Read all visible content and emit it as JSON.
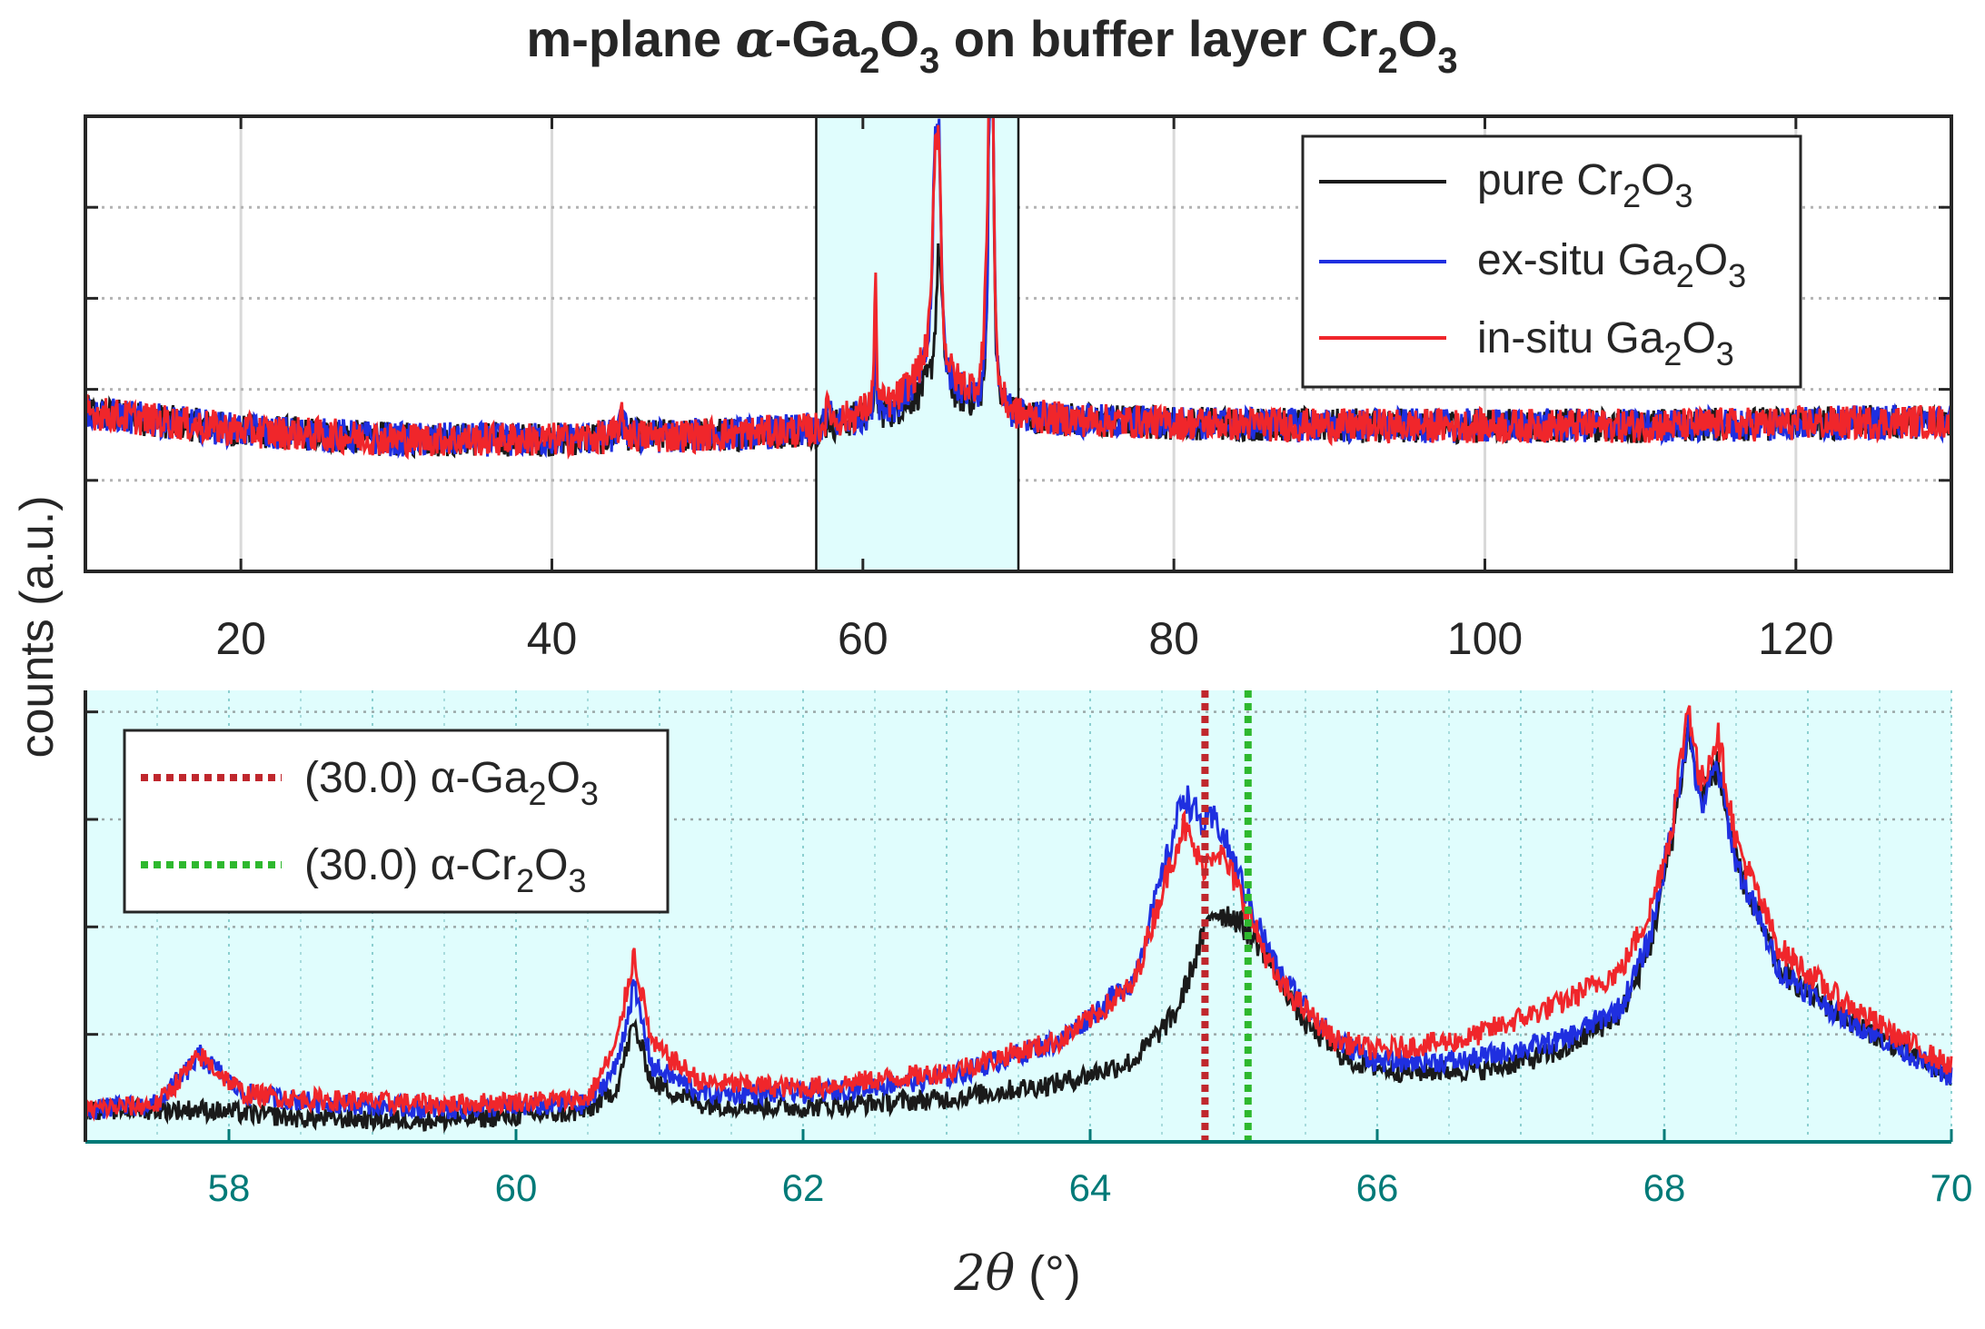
{
  "figure": {
    "title_prefix": "m-plane ",
    "title_greek": "α",
    "title_ga": "-Ga",
    "title_sub1": "2",
    "title_o": "O",
    "title_sub2": "3",
    "title_mid": " on buffer layer Cr",
    "title_sub3": "2",
    "title_o2": "O",
    "title_sub4": "3",
    "ylabel": "counts (a.u.)",
    "xlabel_theta": "2θ",
    "xlabel_unit": " (°)"
  },
  "chart_data": [
    {
      "type": "line",
      "panel": "overview",
      "xlim": [
        10,
        130
      ],
      "ylim": [
        0,
        5
      ],
      "xticks": [
        20,
        40,
        60,
        80,
        100,
        120
      ],
      "yticks": [
        1,
        2,
        3,
        4
      ],
      "grid": true,
      "legend_position": "top-right",
      "highlight_range": [
        57,
        70
      ],
      "legend": [
        {
          "label": "pure Cr",
          "sub1": "2",
          "mid": "O",
          "sub2": "3"
        },
        {
          "label": "ex-situ Ga",
          "sub1": "2",
          "mid": "O",
          "sub2": "3"
        },
        {
          "label": "in-situ Ga",
          "sub1": "2",
          "mid": "O",
          "sub2": "3"
        }
      ],
      "series": [
        {
          "name": "pure Cr2O3",
          "color": "#1a1a1a",
          "baseline": [
            [
              10,
              1.75
            ],
            [
              20,
              1.55
            ],
            [
              30,
              1.45
            ],
            [
              40,
              1.45
            ],
            [
              50,
              1.5
            ],
            [
              57,
              1.55
            ],
            [
              60,
              1.7
            ],
            [
              62,
              1.75
            ],
            [
              64,
              1.95
            ],
            [
              70,
              1.7
            ],
            [
              75,
              1.65
            ],
            [
              90,
              1.6
            ],
            [
              110,
              1.6
            ],
            [
              130,
              1.65
            ]
          ],
          "peaks": [
            [
              44.5,
              0.15,
              0.25
            ],
            [
              57.8,
              0.1,
              0.15
            ],
            [
              60.8,
              0.75,
              0.08
            ],
            [
              64.9,
              1.6,
              0.25
            ],
            [
              68.15,
              3.6,
              0.1
            ],
            [
              68.35,
              3.3,
              0.1
            ]
          ]
        },
        {
          "name": "ex-situ Ga2O3",
          "color": "#1f2fe0",
          "baseline": [
            [
              10,
              1.75
            ],
            [
              20,
              1.55
            ],
            [
              30,
              1.45
            ],
            [
              40,
              1.45
            ],
            [
              50,
              1.5
            ],
            [
              57,
              1.55
            ],
            [
              60,
              1.7
            ],
            [
              62,
              1.8
            ],
            [
              64,
              2.1
            ],
            [
              70,
              1.7
            ],
            [
              75,
              1.65
            ],
            [
              90,
              1.6
            ],
            [
              110,
              1.6
            ],
            [
              130,
              1.65
            ]
          ],
          "peaks": [
            [
              44.5,
              0.15,
              0.25
            ],
            [
              57.8,
              0.2,
              0.15
            ],
            [
              60.8,
              1.0,
              0.08
            ],
            [
              64.65,
              2.2,
              0.2
            ],
            [
              64.9,
              2.0,
              0.15
            ],
            [
              68.15,
              3.6,
              0.1
            ],
            [
              68.35,
              3.2,
              0.1
            ]
          ]
        },
        {
          "name": "in-situ Ga2O3",
          "color": "#f0262b",
          "baseline": [
            [
              10,
              1.75
            ],
            [
              20,
              1.55
            ],
            [
              30,
              1.45
            ],
            [
              40,
              1.45
            ],
            [
              50,
              1.5
            ],
            [
              57,
              1.55
            ],
            [
              60,
              1.75
            ],
            [
              62,
              1.85
            ],
            [
              64,
              2.2
            ],
            [
              70,
              1.7
            ],
            [
              75,
              1.65
            ],
            [
              90,
              1.6
            ],
            [
              110,
              1.6
            ],
            [
              130,
              1.65
            ]
          ],
          "peaks": [
            [
              44.5,
              0.2,
              0.25
            ],
            [
              57.8,
              0.25,
              0.15
            ],
            [
              60.8,
              1.4,
              0.08
            ],
            [
              64.65,
              2.1,
              0.2
            ],
            [
              64.9,
              1.9,
              0.15
            ],
            [
              67.9,
              0.8,
              0.15
            ],
            [
              68.15,
              3.8,
              0.1
            ],
            [
              68.35,
              3.3,
              0.1
            ]
          ]
        }
      ]
    },
    {
      "type": "line",
      "panel": "zoom",
      "xlim": [
        57,
        70
      ],
      "ylim": [
        0,
        4.2
      ],
      "xticks": [
        58,
        60,
        62,
        64,
        66,
        68,
        70
      ],
      "yticks": [
        1,
        2,
        3,
        4
      ],
      "grid": true,
      "legend_position": "top-left",
      "reference_lines": [
        {
          "x": 64.8,
          "label": "(30.0) α-Ga",
          "sub1": "2",
          "mid": "O",
          "sub2": "3",
          "color": "#c0272d",
          "style": "dotted"
        },
        {
          "x": 65.1,
          "label": "(30.0) α-Cr",
          "sub1": "2",
          "mid": "O",
          "sub2": "3",
          "color": "#2eb82e",
          "style": "dotted"
        }
      ],
      "series": [
        {
          "name": "pure Cr2O3",
          "color": "#1a1a1a",
          "points": [
            [
              57,
              0.3
            ],
            [
              57.5,
              0.3
            ],
            [
              57.8,
              0.3
            ],
            [
              58.5,
              0.22
            ],
            [
              59.5,
              0.2
            ],
            [
              60.5,
              0.28
            ],
            [
              60.7,
              0.5
            ],
            [
              60.82,
              1.1
            ],
            [
              60.95,
              0.55
            ],
            [
              61.3,
              0.35
            ],
            [
              62,
              0.32
            ],
            [
              63,
              0.4
            ],
            [
              63.8,
              0.55
            ],
            [
              64.3,
              0.75
            ],
            [
              64.6,
              1.2
            ],
            [
              64.85,
              2.15
            ],
            [
              65.0,
              2.1
            ],
            [
              65.2,
              1.8
            ],
            [
              65.5,
              1.1
            ],
            [
              65.8,
              0.75
            ],
            [
              66.2,
              0.65
            ],
            [
              66.8,
              0.68
            ],
            [
              67.3,
              0.85
            ],
            [
              67.7,
              1.2
            ],
            [
              67.9,
              1.8
            ],
            [
              68.05,
              2.8
            ],
            [
              68.17,
              3.85
            ],
            [
              68.25,
              3.2
            ],
            [
              68.37,
              3.5
            ],
            [
              68.5,
              2.6
            ],
            [
              68.8,
              1.6
            ],
            [
              69.2,
              1.2
            ],
            [
              69.6,
              0.9
            ],
            [
              70,
              0.6
            ]
          ]
        },
        {
          "name": "ex-situ Ga2O3",
          "color": "#1f2fe0",
          "points": [
            [
              57,
              0.3
            ],
            [
              57.5,
              0.35
            ],
            [
              57.8,
              0.8
            ],
            [
              58.1,
              0.45
            ],
            [
              58.5,
              0.38
            ],
            [
              59.5,
              0.3
            ],
            [
              60.5,
              0.35
            ],
            [
              60.7,
              0.7
            ],
            [
              60.82,
              1.45
            ],
            [
              60.95,
              0.7
            ],
            [
              61.3,
              0.45
            ],
            [
              62,
              0.45
            ],
            [
              63,
              0.6
            ],
            [
              63.8,
              0.95
            ],
            [
              64.3,
              1.5
            ],
            [
              64.55,
              2.7
            ],
            [
              64.65,
              3.25
            ],
            [
              64.78,
              2.95
            ],
            [
              64.88,
              3.0
            ],
            [
              65.0,
              2.6
            ],
            [
              65.3,
              1.6
            ],
            [
              65.7,
              0.95
            ],
            [
              66.0,
              0.75
            ],
            [
              66.6,
              0.75
            ],
            [
              67.3,
              0.95
            ],
            [
              67.7,
              1.25
            ],
            [
              67.9,
              1.9
            ],
            [
              68.05,
              2.9
            ],
            [
              68.17,
              3.9
            ],
            [
              68.25,
              3.1
            ],
            [
              68.37,
              3.5
            ],
            [
              68.5,
              2.6
            ],
            [
              68.8,
              1.6
            ],
            [
              69.2,
              1.2
            ],
            [
              69.6,
              0.9
            ],
            [
              70,
              0.6
            ]
          ]
        },
        {
          "name": "in-situ Ga2O3",
          "color": "#f0262b",
          "points": [
            [
              57,
              0.3
            ],
            [
              57.5,
              0.35
            ],
            [
              57.8,
              0.8
            ],
            [
              58.1,
              0.45
            ],
            [
              58.5,
              0.4
            ],
            [
              59.5,
              0.35
            ],
            [
              60.5,
              0.4
            ],
            [
              60.7,
              0.9
            ],
            [
              60.82,
              1.75
            ],
            [
              60.95,
              0.9
            ],
            [
              61.3,
              0.55
            ],
            [
              62,
              0.5
            ],
            [
              63,
              0.65
            ],
            [
              63.8,
              0.95
            ],
            [
              64.3,
              1.45
            ],
            [
              64.55,
              2.55
            ],
            [
              64.65,
              2.95
            ],
            [
              64.78,
              2.55
            ],
            [
              64.88,
              2.75
            ],
            [
              65.0,
              2.45
            ],
            [
              65.3,
              1.5
            ],
            [
              65.7,
              0.95
            ],
            [
              66.0,
              0.85
            ],
            [
              66.6,
              0.95
            ],
            [
              67.3,
              1.3
            ],
            [
              67.7,
              1.6
            ],
            [
              67.9,
              2.15
            ],
            [
              68.05,
              2.9
            ],
            [
              68.17,
              4.1
            ],
            [
              68.25,
              3.3
            ],
            [
              68.37,
              3.8
            ],
            [
              68.5,
              2.8
            ],
            [
              68.8,
              1.8
            ],
            [
              69.2,
              1.35
            ],
            [
              69.6,
              1.0
            ],
            [
              70,
              0.7
            ]
          ]
        }
      ]
    }
  ]
}
